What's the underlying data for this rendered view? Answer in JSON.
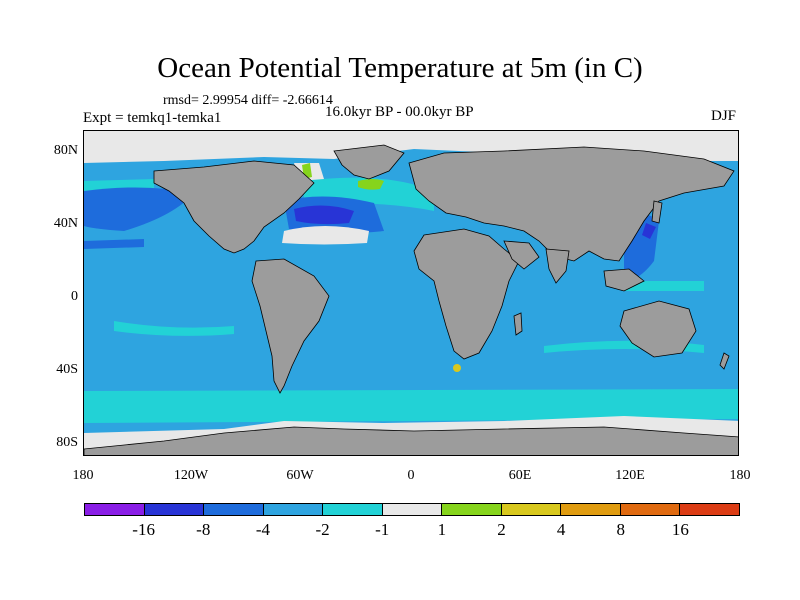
{
  "title": "Ocean Potential Temperature at 5m (in C)",
  "stats": "rmsd= 2.99954 diff= -2.66614",
  "experiment": "Expt = temkq1-temka1",
  "period": "16.0kyr BP - 00.0kyr BP",
  "season": "DJF",
  "lat_labels": [
    "80N",
    "40N",
    "0",
    "40S",
    "80S"
  ],
  "lon_labels": [
    "180",
    "120W",
    "60W",
    "0",
    "60E",
    "120E",
    "180"
  ],
  "colorbar": {
    "colors": [
      "#8a1ee6",
      "#2834d6",
      "#1e6cdc",
      "#2ea4e0",
      "#22d2d6",
      "#e8e8e8",
      "#86d41c",
      "#d8c81e",
      "#e09c10",
      "#e06a10",
      "#dc3c14"
    ],
    "labels": [
      "-16",
      "-8",
      "-4",
      "-2",
      "-1",
      "1",
      "2",
      "4",
      "8",
      "16"
    ]
  },
  "map": {
    "projection": "cylindrical equidistant",
    "lon_range": [
      -180,
      180
    ],
    "lat_range": [
      -90,
      90
    ],
    "ocean_base_color": "#2ea4e0",
    "land_color": "#9c9c9c",
    "sea_ice_color": "#e8e8e8"
  }
}
